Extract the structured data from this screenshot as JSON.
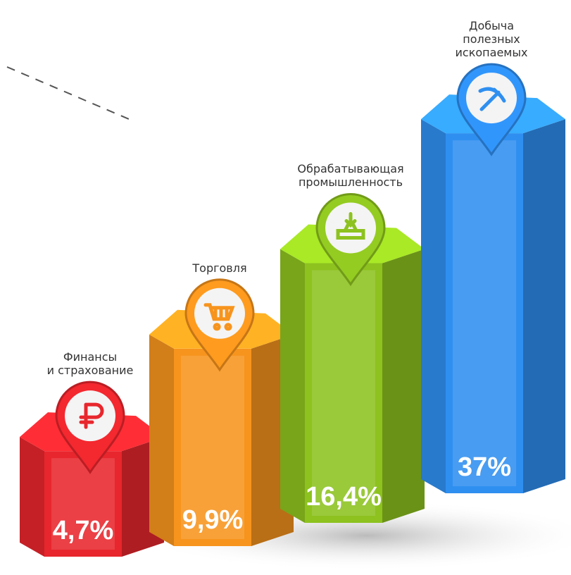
{
  "chart_data": {
    "type": "bar",
    "log_scale": true,
    "categories": [
      "Финансы\nи страхование",
      "Торговля",
      "Обрабатывающая\nпромышленность",
      "Добыча\nполезных\nископаемых"
    ],
    "values": [
      4.7,
      9.9,
      16.4,
      37
    ],
    "value_labels": [
      "4,7%",
      "9,9%",
      "16,4%",
      "37%"
    ],
    "colors": [
      "#e8262d",
      "#f7941d",
      "#8dc21f",
      "#2f8ff0"
    ]
  }
}
